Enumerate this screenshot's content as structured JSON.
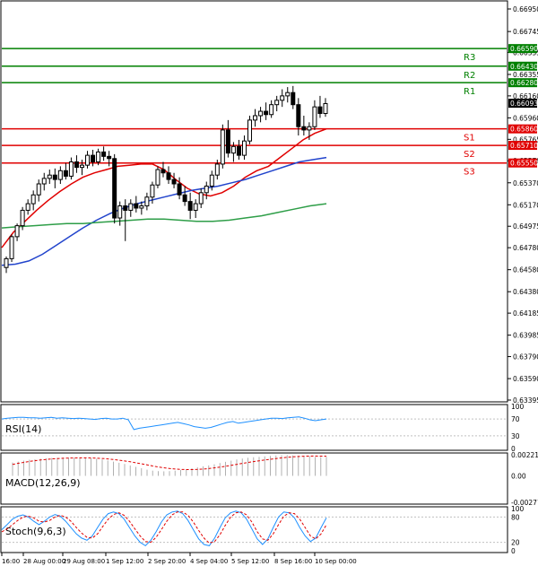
{
  "chart_data": {
    "type": "candlestick",
    "price_panel": {
      "y_ticks": [
        0.6695,
        0.66745,
        0.66555,
        0.66355,
        0.6616,
        0.6596,
        0.65765,
        0.6557,
        0.6537,
        0.6517,
        0.64975,
        0.6478,
        0.6458,
        0.6438,
        0.64185,
        0.63985,
        0.6379,
        0.6359,
        0.63395
      ],
      "ylim": [
        0.63395,
        0.6695
      ],
      "current_price": "0.66093",
      "levels": [
        {
          "label": "R3",
          "value": 0.6659,
          "tag": "0.66590",
          "color": "#008000"
        },
        {
          "label": "R2",
          "value": 0.6643,
          "tag": "0.66430",
          "color": "#008000"
        },
        {
          "label": "R1",
          "value": 0.6628,
          "tag": "0.66280",
          "color": "#008000"
        },
        {
          "label": "S1",
          "value": 0.6586,
          "tag": "0.65860",
          "color": "#e00000"
        },
        {
          "label": "S2",
          "value": 0.6571,
          "tag": "0.65710",
          "color": "#e00000"
        },
        {
          "label": "S3",
          "value": 0.6555,
          "tag": "0.65550",
          "color": "#e00000"
        }
      ],
      "candles": [
        [
          0.646,
          0.647,
          0.6455,
          0.6468
        ],
        [
          0.6468,
          0.649,
          0.6465,
          0.6488
        ],
        [
          0.6488,
          0.65,
          0.6484,
          0.6498
        ],
        [
          0.6498,
          0.6515,
          0.6494,
          0.6512
        ],
        [
          0.6512,
          0.6522,
          0.6508,
          0.6518
        ],
        [
          0.6518,
          0.653,
          0.6512,
          0.6526
        ],
        [
          0.6526,
          0.654,
          0.652,
          0.6536
        ],
        [
          0.6536,
          0.6546,
          0.653,
          0.6541
        ],
        [
          0.6541,
          0.6549,
          0.6536,
          0.6544
        ],
        [
          0.6544,
          0.655,
          0.6532,
          0.654
        ],
        [
          0.654,
          0.6552,
          0.6536,
          0.6548
        ],
        [
          0.6548,
          0.6555,
          0.654,
          0.6543
        ],
        [
          0.6543,
          0.656,
          0.654,
          0.6556
        ],
        [
          0.6556,
          0.6562,
          0.6546,
          0.6551
        ],
        [
          0.6551,
          0.6558,
          0.6544,
          0.6553
        ],
        [
          0.6553,
          0.6566,
          0.655,
          0.6562
        ],
        [
          0.6562,
          0.6567,
          0.6552,
          0.6556
        ],
        [
          0.6556,
          0.6568,
          0.6553,
          0.6565
        ],
        [
          0.6565,
          0.657,
          0.6557,
          0.6561
        ],
        [
          0.6561,
          0.6566,
          0.6552,
          0.6559
        ],
        [
          0.6559,
          0.6563,
          0.65,
          0.6505
        ],
        [
          0.6505,
          0.652,
          0.6498,
          0.6516
        ],
        [
          0.6516,
          0.6522,
          0.6484,
          0.6512
        ],
        [
          0.6512,
          0.6522,
          0.6506,
          0.6518
        ],
        [
          0.6518,
          0.6525,
          0.651,
          0.6514
        ],
        [
          0.6514,
          0.652,
          0.6508,
          0.6516
        ],
        [
          0.6516,
          0.6528,
          0.6512,
          0.6524
        ],
        [
          0.6524,
          0.6538,
          0.6518,
          0.6535
        ],
        [
          0.6535,
          0.6552,
          0.6532,
          0.6549
        ],
        [
          0.6549,
          0.6556,
          0.6542,
          0.6546
        ],
        [
          0.6546,
          0.6552,
          0.6536,
          0.654
        ],
        [
          0.654,
          0.6546,
          0.6532,
          0.6536
        ],
        [
          0.6536,
          0.6542,
          0.6522,
          0.6526
        ],
        [
          0.6526,
          0.6534,
          0.6516,
          0.652
        ],
        [
          0.652,
          0.6528,
          0.6504,
          0.6512
        ],
        [
          0.6512,
          0.6522,
          0.6505,
          0.6518
        ],
        [
          0.6518,
          0.6532,
          0.6514,
          0.6528
        ],
        [
          0.6528,
          0.6538,
          0.6522,
          0.6534
        ],
        [
          0.6534,
          0.6548,
          0.653,
          0.6544
        ],
        [
          0.6544,
          0.6558,
          0.654,
          0.6554
        ],
        [
          0.6554,
          0.659,
          0.655,
          0.6585
        ],
        [
          0.6585,
          0.6594,
          0.656,
          0.6564
        ],
        [
          0.6564,
          0.6574,
          0.6556,
          0.657
        ],
        [
          0.657,
          0.6576,
          0.6558,
          0.6562
        ],
        [
          0.6562,
          0.658,
          0.6558,
          0.6575
        ],
        [
          0.6575,
          0.6598,
          0.6572,
          0.6594
        ],
        [
          0.6594,
          0.6604,
          0.6588,
          0.6598
        ],
        [
          0.6598,
          0.6606,
          0.6592,
          0.6602
        ],
        [
          0.6602,
          0.661,
          0.6594,
          0.6599
        ],
        [
          0.6599,
          0.6612,
          0.6596,
          0.6608
        ],
        [
          0.6608,
          0.6616,
          0.6602,
          0.6612
        ],
        [
          0.6612,
          0.6622,
          0.6606,
          0.6616
        ],
        [
          0.6616,
          0.6624,
          0.661,
          0.6619
        ],
        [
          0.6619,
          0.6625,
          0.6604,
          0.6608
        ],
        [
          0.6608,
          0.6614,
          0.658,
          0.6588
        ],
        [
          0.6588,
          0.6598,
          0.658,
          0.6585
        ],
        [
          0.6585,
          0.6592,
          0.6576,
          0.6588
        ],
        [
          0.6588,
          0.6612,
          0.6585,
          0.6606
        ],
        [
          0.6606,
          0.6616,
          0.6596,
          0.66
        ],
        [
          0.66,
          0.6614,
          0.6597,
          0.6609
        ]
      ],
      "ma_series": [
        {
          "color": "#e00000",
          "values": [
            0.6478,
            0.6492,
            0.6502,
            0.6512,
            0.6521,
            0.6529,
            0.6536,
            0.6542,
            0.6546,
            0.6549,
            0.6552,
            0.6553,
            0.6554,
            0.6554,
            0.6549,
            0.654,
            0.6532,
            0.6527,
            0.6525,
            0.6528,
            0.6534,
            0.6542,
            0.6548,
            0.6552,
            0.656,
            0.6568,
            0.6576,
            0.6582,
            0.6586
          ]
        },
        {
          "color": "#2244cc",
          "values": [
            0.6462,
            0.6463,
            0.6466,
            0.6472,
            0.648,
            0.6488,
            0.6496,
            0.6503,
            0.6509,
            0.6514,
            0.6518,
            0.6521,
            0.6524,
            0.6527,
            0.653,
            0.6532,
            0.6534,
            0.6537,
            0.654,
            0.6544,
            0.6548,
            0.6552,
            0.6556,
            0.6558,
            0.656
          ]
        },
        {
          "color": "#2e9e48",
          "values": [
            0.6496,
            0.6497,
            0.6498,
            0.6499,
            0.65,
            0.65,
            0.6501,
            0.6502,
            0.6503,
            0.6504,
            0.6504,
            0.6503,
            0.6502,
            0.6502,
            0.6503,
            0.6505,
            0.6507,
            0.651,
            0.6513,
            0.6516,
            0.6518
          ]
        }
      ]
    },
    "rsi_panel": {
      "title": "RSI(14)",
      "ticks": [
        100,
        70,
        30,
        0
      ],
      "ylim": [
        0,
        100
      ],
      "values": [
        70,
        72,
        73,
        74,
        74,
        73,
        73,
        72,
        73,
        74,
        72,
        73,
        72,
        71,
        72,
        71,
        70,
        69,
        71,
        72,
        70,
        70,
        72,
        68,
        45,
        48,
        50,
        52,
        54,
        56,
        58,
        60,
        62,
        59,
        56,
        52,
        50,
        48,
        50,
        54,
        58,
        62,
        64,
        60,
        62,
        64,
        66,
        68,
        70,
        72,
        72,
        71,
        73,
        74,
        75,
        72,
        68,
        66,
        68,
        70
      ]
    },
    "macd_panel": {
      "title": "MACD(12,26,9)",
      "ticks": [
        "0.002218",
        "0.00",
        "-0.002777"
      ],
      "ylim": [
        -0.002777,
        0.002218
      ],
      "histogram": [
        0.0014,
        0.0015,
        0.0016,
        0.0017,
        0.00175,
        0.0018,
        0.00185,
        0.00188,
        0.0019,
        0.00192,
        0.00192,
        0.00191,
        0.0019,
        0.00188,
        0.00185,
        0.0018,
        0.00172,
        0.00162,
        0.0015,
        0.00138,
        0.00125,
        0.0011,
        0.00095,
        0.0008,
        0.00065,
        0.00055,
        0.0005,
        0.00048,
        0.0005,
        0.00055,
        0.00062,
        0.0007,
        0.0008,
        0.0009,
        0.001,
        0.0011,
        0.00122,
        0.00135,
        0.00148,
        0.0016,
        0.00172,
        0.00182,
        0.0019,
        0.00196,
        0.002,
        0.00205,
        0.0021,
        0.00214,
        0.00216,
        0.00218,
        0.00215,
        0.00212,
        0.0021,
        0.00205,
        0.002,
        0.00198,
        0.002
      ],
      "signal": [
        0.0012,
        0.00132,
        0.00142,
        0.00152,
        0.0016,
        0.00167,
        0.00173,
        0.00178,
        0.00182,
        0.00185,
        0.00187,
        0.00188,
        0.00189,
        0.00189,
        0.00188,
        0.00186,
        0.00183,
        0.00178,
        0.00172,
        0.00165,
        0.00157,
        0.00148,
        0.00138,
        0.00127,
        0.00116,
        0.00104,
        0.00094,
        0.00085,
        0.00078,
        0.00072,
        0.00068,
        0.00066,
        0.00066,
        0.00068,
        0.00072,
        0.00077,
        0.00084,
        0.00092,
        0.00101,
        0.00111,
        0.00121,
        0.00131,
        0.00141,
        0.0015,
        0.00159,
        0.00167,
        0.00175,
        0.00182,
        0.00189,
        0.00195,
        0.002,
        0.00204,
        0.00207,
        0.00208,
        0.00209,
        0.00208,
        0.00207
      ]
    },
    "stoch_panel": {
      "title": "Stoch(9,6,3)",
      "ticks": [
        100,
        80,
        20,
        0
      ],
      "ylim": [
        0,
        100
      ],
      "k": [
        50,
        62,
        75,
        82,
        85,
        80,
        70,
        62,
        70,
        80,
        86,
        82,
        70,
        55,
        40,
        30,
        25,
        35,
        55,
        75,
        88,
        92,
        88,
        75,
        55,
        35,
        20,
        12,
        25,
        45,
        68,
        85,
        92,
        94,
        88,
        72,
        50,
        28,
        15,
        12,
        30,
        55,
        78,
        90,
        94,
        90,
        75,
        52,
        28,
        15,
        28,
        55,
        80,
        92,
        90,
        78,
        55,
        35,
        22,
        30,
        55,
        78
      ],
      "d": [
        45,
        52,
        62,
        72,
        80,
        82,
        78,
        70,
        68,
        72,
        80,
        84,
        80,
        70,
        55,
        42,
        32,
        30,
        40,
        58,
        75,
        86,
        90,
        84,
        70,
        52,
        35,
        22,
        20,
        32,
        50,
        70,
        85,
        92,
        92,
        84,
        68,
        48,
        30,
        18,
        22,
        38,
        60,
        80,
        90,
        92,
        85,
        68,
        45,
        28,
        25,
        40,
        62,
        82,
        90,
        88,
        75,
        55,
        35,
        28,
        40,
        62
      ]
    },
    "x_ticks": [
      "16:00",
      "28 Aug 00:00",
      "29 Aug 08:00",
      "1 Sep 12:00",
      "2 Sep 20:00",
      "4 Sep 04:00",
      "5 Sep 12:00",
      "8 Sep 16:00",
      "10 Sep 00:00"
    ]
  }
}
